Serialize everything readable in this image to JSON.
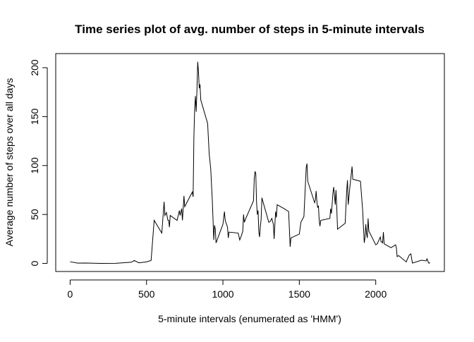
{
  "chart_data": {
    "type": "line",
    "title": "Time series plot of avg. number of steps in 5-minute intervals",
    "x_label": "5-minute intervals (enumerated as 'HMM')",
    "y_label": "Average number of steps over all days",
    "x": [
      0,
      50,
      100,
      150,
      200,
      300,
      400,
      420,
      450,
      500,
      530,
      550,
      600,
      615,
      620,
      630,
      640,
      645,
      650,
      655,
      700,
      715,
      720,
      730,
      735,
      745,
      750,
      800,
      805,
      810,
      815,
      820,
      825,
      830,
      835,
      840,
      845,
      850,
      855,
      900,
      910,
      920,
      930,
      935,
      940,
      945,
      950,
      955,
      1000,
      1010,
      1015,
      1030,
      1035,
      1040,
      1100,
      1110,
      1115,
      1120,
      1130,
      1135,
      1140,
      1145,
      1150,
      1200,
      1205,
      1210,
      1215,
      1220,
      1225,
      1230,
      1235,
      1240,
      1245,
      1250,
      1255,
      1300,
      1310,
      1320,
      1330,
      1335,
      1340,
      1345,
      1350,
      1355,
      1400,
      1430,
      1440,
      1445,
      1500,
      1510,
      1530,
      1545,
      1550,
      1555,
      1600,
      1605,
      1610,
      1615,
      1620,
      1625,
      1630,
      1635,
      1640,
      1700,
      1705,
      1710,
      1715,
      1720,
      1725,
      1730,
      1735,
      1740,
      1745,
      1750,
      1800,
      1805,
      1810,
      1815,
      1820,
      1830,
      1845,
      1850,
      1900,
      1915,
      1920,
      1925,
      1930,
      1935,
      1940,
      1945,
      1950,
      1955,
      2000,
      2010,
      2030,
      2035,
      2040,
      2045,
      2050,
      2055,
      2100,
      2130,
      2135,
      2140,
      2150,
      2200,
      2205,
      2220,
      2230,
      2240,
      2300,
      2330,
      2335,
      2340,
      2345,
      2350,
      2355
    ],
    "series": [
      {
        "color": "#000000",
        "values": [
          1.7,
          0.3,
          0.4,
          0.2,
          0,
          0.1,
          1.2,
          3,
          0.6,
          1.6,
          3,
          44,
          31,
          63,
          49,
          52,
          44,
          44,
          37,
          49,
          44,
          54,
          49,
          56,
          44,
          69,
          58,
          73,
          68,
          129,
          158,
          171,
          155,
          177,
          206,
          196,
          179,
          183,
          167,
          143,
          112,
          97,
          66,
          46,
          24,
          39,
          35,
          21,
          40,
          53,
          44,
          37,
          26,
          32,
          31,
          24,
          26,
          28,
          33,
          50,
          42,
          44,
          46,
          64,
          87,
          94,
          92,
          63,
          50,
          54,
          32,
          27,
          38,
          45,
          67,
          42,
          43,
          46,
          40,
          25,
          40,
          53,
          47,
          60,
          56,
          53,
          17,
          26,
          30,
          42,
          48,
          98,
          102,
          84,
          62,
          65,
          74,
          63,
          57,
          59,
          44,
          38,
          44,
          46,
          56,
          51,
          61,
          72,
          78,
          69,
          60,
          75,
          57,
          35,
          41,
          58,
          74,
          85,
          60,
          77,
          99,
          86,
          84,
          53,
          36,
          21,
          27,
          40,
          30,
          26,
          46,
          33,
          19,
          20,
          27,
          22,
          22,
          21,
          32,
          20,
          16,
          19,
          16,
          7,
          8,
          1.5,
          3.7,
          8.7,
          9.8,
          0.3,
          3.3,
          2.6,
          4.7,
          3.3,
          0.6,
          0.2,
          1.1
        ]
      }
    ],
    "xlim": [
      -94.2,
      2449.2
    ],
    "ylim": [
      -8.25,
      214.4
    ],
    "xticks": [
      0,
      500,
      1000,
      1500,
      2000
    ],
    "yticks": [
      0,
      50,
      100,
      150,
      200
    ]
  }
}
